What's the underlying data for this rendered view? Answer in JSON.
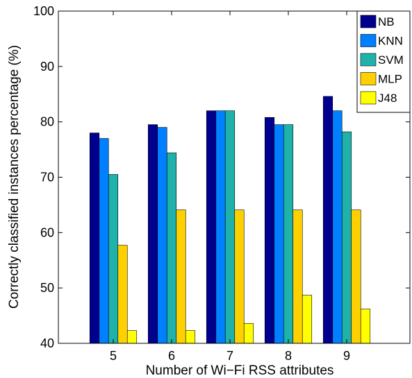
{
  "chart_data": {
    "type": "bar",
    "title": "",
    "xlabel": "Number of Wi−Fi RSS attributes",
    "ylabel": "Correctly classified instances percentage (%)",
    "categories": [
      "5",
      "6",
      "7",
      "8",
      "9"
    ],
    "ylim": [
      40,
      100
    ],
    "yticks": [
      40,
      50,
      60,
      70,
      80,
      90,
      100
    ],
    "grid": false,
    "legend_position": "top-right",
    "series": [
      {
        "name": "NB",
        "color": "#00008f",
        "values": [
          78.0,
          79.5,
          82.0,
          80.8,
          84.6
        ]
      },
      {
        "name": "KNN",
        "color": "#0080ff",
        "values": [
          77.0,
          79.0,
          82.0,
          79.5,
          82.0
        ]
      },
      {
        "name": "SVM",
        "color": "#1fb2aa",
        "values": [
          70.5,
          74.4,
          82.0,
          79.5,
          78.2
        ]
      },
      {
        "name": "MLP",
        "color": "#ffd000",
        "values": [
          57.7,
          64.1,
          64.1,
          64.1,
          64.1
        ]
      },
      {
        "name": "J48",
        "color": "#ffff00",
        "values": [
          42.3,
          42.3,
          43.6,
          48.7,
          46.2
        ]
      }
    ]
  }
}
